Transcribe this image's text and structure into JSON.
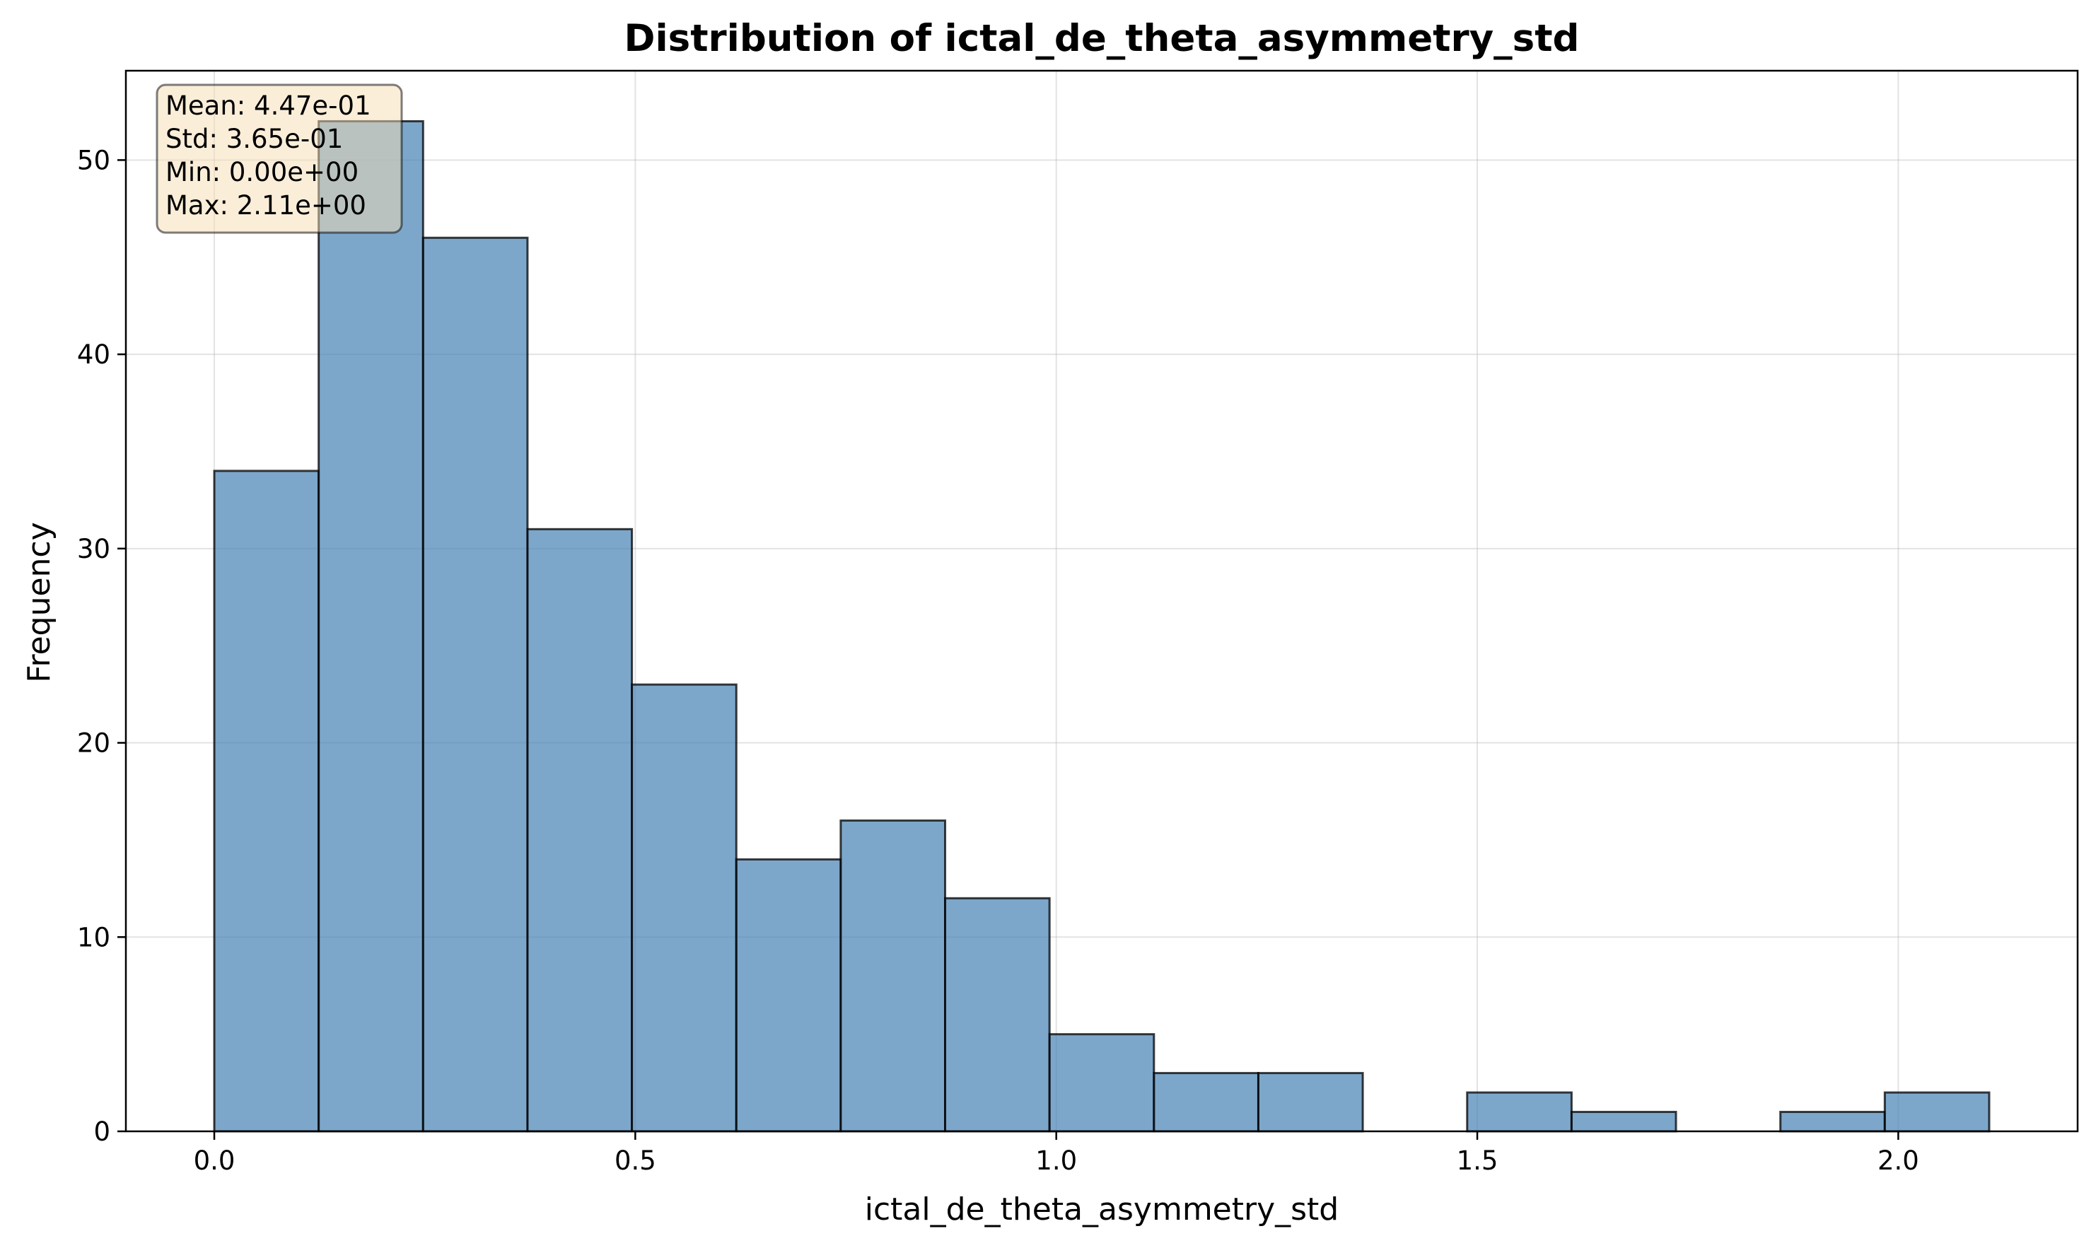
{
  "chart_data": {
    "type": "bar",
    "title": "Distribution of ictal_de_theta_asymmetry_std",
    "xlabel": "ictal_de_theta_asymmetry_std",
    "ylabel": "Frequency",
    "bin_edges": [
      0.0,
      0.124,
      0.248,
      0.372,
      0.496,
      0.62,
      0.744,
      0.868,
      0.992,
      1.116,
      1.24,
      1.364,
      1.488,
      1.612,
      1.736,
      1.86,
      1.984,
      2.108
    ],
    "values": [
      34,
      52,
      46,
      31,
      23,
      14,
      16,
      12,
      5,
      3,
      3,
      0,
      2,
      1,
      0,
      1,
      2
    ],
    "xlim": [
      -0.105,
      2.213
    ],
    "ylim": [
      0,
      54.6
    ],
    "xticks": [
      0.0,
      0.5,
      1.0,
      1.5,
      2.0
    ],
    "xtick_labels": [
      "0.0",
      "0.5",
      "1.0",
      "1.5",
      "2.0"
    ],
    "yticks": [
      0,
      10,
      20,
      30,
      40,
      50
    ],
    "ytick_labels": [
      "0",
      "10",
      "20",
      "30",
      "40",
      "50"
    ],
    "grid": true,
    "bar_color": "#4682b4",
    "stats": {
      "lines": [
        "Mean: 4.47e-01",
        "Std: 3.65e-01",
        "Min: 0.00e+00",
        "Max: 2.11e+00"
      ],
      "box_color": "#f5deb3",
      "placement": "top-left"
    }
  }
}
